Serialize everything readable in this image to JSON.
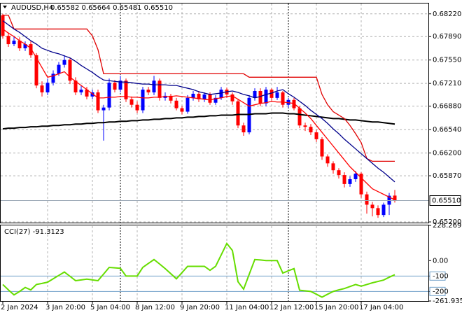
{
  "chart_data": [
    {
      "type": "candlestick",
      "title": "AUDUSD,H4",
      "subtitle": "0.65582 0.65664 0.65481 0.65510",
      "categories": [
        "2 Jan 2024",
        null,
        null,
        null,
        null,
        null,
        null,
        null,
        "3 Jan 20:00",
        null,
        null,
        null,
        null,
        null,
        null,
        null,
        "5 Jan 04:00",
        null,
        null,
        null,
        null,
        null,
        null,
        null,
        "8 Jan 12:00",
        null,
        null,
        null,
        null,
        null,
        null,
        null,
        "9 Jan 20:00",
        null,
        null,
        null,
        null,
        null,
        null,
        null,
        "11 Jan 04:00",
        null,
        null,
        null,
        null,
        null,
        null,
        null,
        "12 Jan 12:00",
        null,
        null,
        null,
        null,
        null,
        null,
        null,
        "15 Jan 20:00",
        null,
        null,
        null,
        null,
        null,
        null,
        null,
        "17 Jan 04:00",
        null,
        null,
        null,
        null,
        null,
        null
      ],
      "open": [
        0.682,
        0.679,
        0.6778,
        0.6783,
        0.6772,
        0.6778,
        0.6762,
        0.6718,
        0.6708,
        0.6722,
        0.6735,
        0.6748,
        0.6755,
        0.6725,
        0.6708,
        0.6712,
        0.6702,
        0.6708,
        0.6682,
        0.6686,
        0.6722,
        0.6712,
        0.6725,
        0.6698,
        0.669,
        0.6682,
        0.6712,
        0.6708,
        0.6725,
        0.67,
        0.6703,
        0.6696,
        0.6685,
        0.668,
        0.67,
        0.6706,
        0.6698,
        0.6705,
        0.6693,
        0.67,
        0.6712,
        0.6705,
        0.6695,
        0.666,
        0.665,
        0.67,
        0.671,
        0.6692,
        0.6712,
        0.67,
        0.6708,
        0.669,
        0.6697,
        0.6685,
        0.666,
        0.6658,
        0.665,
        0.664,
        0.6615,
        0.6605,
        0.6595,
        0.6588,
        0.6575,
        0.6582,
        0.659,
        0.656,
        0.6545,
        0.654,
        0.653,
        0.6545,
        0.65582
      ],
      "high": [
        0.6822,
        0.6795,
        0.679,
        0.6788,
        0.6782,
        0.6782,
        0.6765,
        0.6724,
        0.6728,
        0.674,
        0.6752,
        0.6762,
        0.6758,
        0.673,
        0.6718,
        0.6716,
        0.6712,
        0.6712,
        0.669,
        0.6728,
        0.6726,
        0.6732,
        0.6728,
        0.6702,
        0.6695,
        0.6716,
        0.6716,
        0.6732,
        0.6728,
        0.6708,
        0.6706,
        0.67,
        0.6688,
        0.6704,
        0.671,
        0.671,
        0.6708,
        0.6708,
        0.6704,
        0.6716,
        0.6715,
        0.6708,
        0.6698,
        0.6664,
        0.6704,
        0.6714,
        0.6714,
        0.6716,
        0.6714,
        0.6716,
        0.671,
        0.67,
        0.67,
        0.6688,
        0.6664,
        0.6662,
        0.6654,
        0.6643,
        0.6618,
        0.6608,
        0.6598,
        0.6592,
        0.6586,
        0.6594,
        0.6592,
        0.6564,
        0.6549,
        0.6544,
        0.6548,
        0.6562,
        0.65664
      ],
      "low": [
        0.6786,
        0.6774,
        0.6775,
        0.6768,
        0.6768,
        0.6758,
        0.6714,
        0.6702,
        0.6704,
        0.6718,
        0.6732,
        0.6744,
        0.672,
        0.6704,
        0.6704,
        0.6698,
        0.6698,
        0.6678,
        0.6638,
        0.6682,
        0.6708,
        0.6708,
        0.6694,
        0.6686,
        0.6678,
        0.6678,
        0.6704,
        0.6704,
        0.6696,
        0.6696,
        0.6692,
        0.6682,
        0.6676,
        0.6677,
        0.6696,
        0.6694,
        0.6694,
        0.669,
        0.669,
        0.6697,
        0.67,
        0.669,
        0.6656,
        0.6645,
        0.6647,
        0.6696,
        0.6688,
        0.6688,
        0.6696,
        0.6697,
        0.6686,
        0.6686,
        0.6682,
        0.6656,
        0.6652,
        0.6646,
        0.6636,
        0.661,
        0.66,
        0.659,
        0.6583,
        0.657,
        0.6571,
        0.6578,
        0.6555,
        0.6532,
        0.6528,
        0.6526,
        0.6527,
        0.653,
        0.65481
      ],
      "close": [
        0.679,
        0.6778,
        0.6783,
        0.6772,
        0.6778,
        0.6762,
        0.6718,
        0.6708,
        0.6722,
        0.6735,
        0.6748,
        0.6755,
        0.6725,
        0.6708,
        0.6712,
        0.6702,
        0.6708,
        0.6682,
        0.6686,
        0.6722,
        0.6712,
        0.6725,
        0.6698,
        0.669,
        0.6682,
        0.6712,
        0.6708,
        0.6725,
        0.67,
        0.6703,
        0.6696,
        0.6685,
        0.668,
        0.67,
        0.6706,
        0.6698,
        0.6705,
        0.6693,
        0.67,
        0.6712,
        0.6705,
        0.6695,
        0.666,
        0.665,
        0.67,
        0.671,
        0.6692,
        0.6712,
        0.67,
        0.6708,
        0.669,
        0.6697,
        0.6685,
        0.666,
        0.6658,
        0.665,
        0.664,
        0.6615,
        0.6605,
        0.6595,
        0.6588,
        0.6575,
        0.6582,
        0.659,
        0.656,
        0.6545,
        0.654,
        0.653,
        0.6545,
        0.6558,
        0.6551
      ],
      "up_color": "#0000ff",
      "down_color": "#ff0000",
      "overlays": [
        {
          "color": "#000000",
          "values": [
            0.6655,
            0.6656,
            0.6656,
            0.6657,
            0.6657,
            0.6658,
            0.6658,
            0.6659,
            0.6659,
            0.666,
            0.666,
            0.6661,
            0.6661,
            0.6662,
            0.6662,
            0.6663,
            0.6663,
            0.6664,
            0.6664,
            0.6665,
            0.6665,
            0.6666,
            0.6666,
            0.6667,
            0.6667,
            0.6668,
            0.6668,
            0.6669,
            0.6669,
            0.667,
            0.667,
            0.6671,
            0.6671,
            0.6672,
            0.6672,
            0.6673,
            0.6673,
            0.6674,
            0.6674,
            0.6675,
            0.6675,
            0.6675,
            0.6676,
            0.6676,
            0.6676,
            0.6677,
            0.6677,
            0.6677,
            0.6678,
            0.6678,
            0.6678,
            0.6677,
            0.6677,
            0.6676,
            0.6675,
            0.6674,
            0.6673,
            0.6672,
            0.6671,
            0.667,
            0.667,
            0.6669,
            0.6668,
            0.6668,
            0.6667,
            0.6666,
            0.6665,
            0.6665,
            0.6664,
            0.6663,
            0.6662
          ]
        },
        {
          "color": "#e00000",
          "values": [
            0.682,
            0.682,
            0.68,
            0.68,
            0.68,
            0.68,
            0.68,
            0.68,
            0.68,
            0.68,
            0.68,
            0.68,
            0.68,
            0.68,
            0.68,
            0.68,
            0.679,
            0.677,
            0.6735,
            0.6735,
            0.6735,
            0.6735,
            0.6735,
            0.6735,
            0.6735,
            0.6735,
            0.6735,
            0.6735,
            0.6735,
            0.6735,
            0.6735,
            0.6735,
            0.6735,
            0.6735,
            0.6735,
            0.6735,
            0.6735,
            0.6735,
            0.6735,
            0.6735,
            0.6735,
            0.6735,
            0.6735,
            0.6735,
            0.673,
            0.673,
            0.673,
            0.673,
            0.673,
            0.673,
            0.673,
            0.673,
            0.673,
            0.673,
            0.673,
            0.673,
            0.673,
            0.6705,
            0.669,
            0.668,
            0.6675,
            0.667,
            0.666,
            0.6648,
            0.6635,
            0.6612,
            0.6608,
            0.6608,
            0.6608,
            0.6608,
            0.6608
          ]
        },
        {
          "color": "#00008b",
          "values": [
            0.6812,
            0.6806,
            0.68,
            0.6795,
            0.6789,
            0.6783,
            0.6778,
            0.6772,
            0.6769,
            0.6766,
            0.6764,
            0.6761,
            0.6758,
            0.6753,
            0.6747,
            0.6742,
            0.6737,
            0.6731,
            0.6726,
            0.6725,
            0.6724,
            0.6723,
            0.6723,
            0.6722,
            0.6721,
            0.672,
            0.672,
            0.6719,
            0.6719,
            0.6719,
            0.6718,
            0.6718,
            0.6716,
            0.6714,
            0.6712,
            0.6709,
            0.6707,
            0.6705,
            0.6706,
            0.6707,
            0.6709,
            0.671,
            0.6708,
            0.6705,
            0.6703,
            0.67,
            0.6702,
            0.6705,
            0.6707,
            0.671,
            0.6712,
            0.6706,
            0.6701,
            0.6695,
            0.6689,
            0.6682,
            0.6676,
            0.667,
            0.6663,
            0.6655,
            0.6648,
            0.664,
            0.6633,
            0.6626,
            0.6619,
            0.6612,
            0.6605,
            0.6598,
            0.6592,
            0.6585,
            0.6578
          ]
        },
        {
          "color": "#ff0000",
          "values": [
            0.68,
            0.6794,
            0.6789,
            0.6783,
            0.6778,
            0.6772,
            0.6758,
            0.6744,
            0.673,
            0.6732,
            0.6735,
            0.6738,
            0.673,
            0.6724,
            0.6718,
            0.6712,
            0.6706,
            0.67,
            0.67,
            0.6701,
            0.6701,
            0.6702,
            0.6702,
            0.6701,
            0.6701,
            0.67,
            0.67,
            0.6701,
            0.6701,
            0.6702,
            0.6702,
            0.6703,
            0.6702,
            0.6701,
            0.67,
            0.6699,
            0.6698,
            0.6697,
            0.6699,
            0.67,
            0.6702,
            0.6703,
            0.6698,
            0.6693,
            0.6688,
            0.669,
            0.6692,
            0.6693,
            0.6695,
            0.6694,
            0.6694,
            0.6693,
            0.6692,
            0.6685,
            0.6678,
            0.667,
            0.666,
            0.665,
            0.664,
            0.663,
            0.662,
            0.661,
            0.66,
            0.6592,
            0.6584,
            0.6576,
            0.6568,
            0.6564,
            0.656,
            0.6556,
            0.6552
          ]
        }
      ],
      "ylim": [
        0.6519,
        0.6837
      ],
      "yticks": [
        {
          "value": 0.6822,
          "label": "0.68220"
        },
        {
          "value": 0.6789,
          "label": "0.67890"
        },
        {
          "value": 0.6755,
          "label": "0.67550"
        },
        {
          "value": 0.6721,
          "label": "0.67210"
        },
        {
          "value": 0.6688,
          "label": "0.66880"
        },
        {
          "value": 0.6654,
          "label": "0.66540"
        },
        {
          "value": 0.662,
          "label": "0.66200"
        },
        {
          "value": 0.6587,
          "label": "0.65870"
        },
        {
          "value": 0.652,
          "label": "0.65200"
        }
      ],
      "price_line": {
        "value": 0.6551,
        "label": "0.65510"
      },
      "grid": true
    },
    {
      "type": "line",
      "title": "CCI(27) -91.3123",
      "color": "#66dd00",
      "values": [
        -155,
        -190,
        -222,
        -200,
        -174,
        -190,
        -155,
        -148,
        -140,
        -118,
        -96,
        -74,
        -102,
        -130,
        -125,
        -120,
        -125,
        -130,
        -87,
        -44,
        -47,
        -50,
        -100,
        -100,
        -100,
        -44,
        -18,
        7,
        -22,
        -52,
        -85,
        -118,
        -78,
        -37,
        -37,
        -37,
        -37,
        -63,
        -37,
        37,
        111,
        66,
        -137,
        -185,
        -89,
        7,
        4,
        0,
        0,
        0,
        -81,
        -66,
        -52,
        -192,
        -196,
        -200,
        -218,
        -237,
        -218,
        -200,
        -190,
        -181,
        -168,
        -155,
        -166,
        -155,
        -144,
        -135,
        -126,
        -108,
        -91.3123
      ],
      "ylim": [
        -261.9353,
        228.2698
      ],
      "yticks": [
        228.2698,
        {
          "value": 0,
          "label": "0.00"
        },
        -100,
        -200,
        -261.9353
      ],
      "levels": [
        -100,
        -200
      ],
      "level_color": "#6f9fc8"
    }
  ]
}
